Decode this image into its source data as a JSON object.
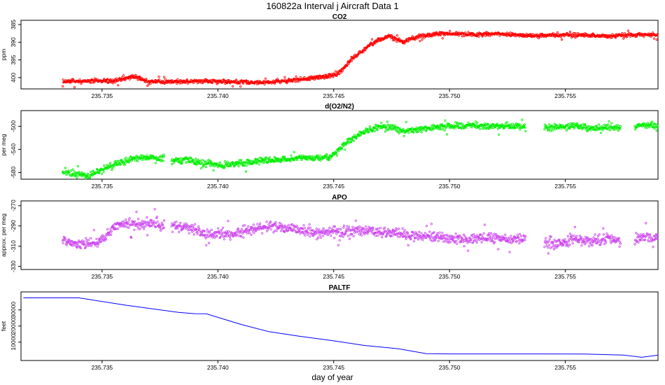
{
  "figure": {
    "title": "160822a   Interval j Aircraft Data 1",
    "xlabel": "day of year"
  },
  "chart_data": [
    {
      "type": "scatter",
      "title": "CO2",
      "ylabel": "ppm",
      "xlim": [
        235.7315,
        235.759
      ],
      "ylim": [
        383.8,
        403.2
      ],
      "yticks": [
        385,
        390,
        395,
        400
      ],
      "reversed_y": true,
      "xticks": [
        235.735,
        235.74,
        235.745,
        235.75,
        235.755
      ],
      "xtick_labels": [
        "235.735",
        "235.740",
        "235.745",
        "235.750",
        "235.755"
      ],
      "grid": false,
      "color": "#ff0000",
      "series": [
        {
          "x": [
            235.7333,
            235.734,
            235.7348,
            235.7355,
            235.736,
            235.7364,
            235.737,
            235.738,
            235.739,
            235.74,
            235.741,
            235.742,
            235.743,
            235.744,
            235.7448,
            235.7452,
            235.7455,
            235.7458,
            235.7462,
            235.7466,
            235.747,
            235.7474,
            235.7478,
            235.748,
            235.7484,
            235.7488,
            235.7494,
            235.75,
            235.751,
            235.752,
            235.753,
            235.754,
            235.755,
            235.756,
            235.757,
            235.758,
            235.759
          ],
          "y": [
            401.2,
            401.0,
            400.9,
            401.0,
            400.3,
            399.6,
            401.2,
            401.2,
            401.0,
            401.0,
            401.3,
            401.4,
            400.9,
            400.1,
            399.6,
            398.8,
            397.0,
            394.5,
            392.7,
            390.5,
            389.2,
            388.4,
            389.2,
            390.0,
            388.8,
            388.3,
            387.6,
            387.6,
            387.9,
            387.6,
            388.0,
            388.2,
            387.9,
            388.1,
            388.3,
            387.9,
            387.9
          ]
        }
      ]
    },
    {
      "type": "scatter",
      "title": "d(O2/N2)",
      "ylabel": "per meg",
      "xlim": [
        235.7315,
        235.759
      ],
      "ylim": [
        -591.6,
        -472.9
      ],
      "yticks": [
        -580,
        -540,
        -500
      ],
      "xticks": [
        235.735,
        235.74,
        235.745,
        235.75,
        235.755
      ],
      "xtick_labels": [
        "235.735",
        "235.740",
        "235.745",
        "235.750",
        "235.755"
      ],
      "grid": false,
      "color": "#00ee00",
      "series": [
        {
          "segments": [
            {
              "x": [
                235.7333,
                235.7338,
                235.7343,
                235.7348,
                235.7353,
                235.7358,
                235.7365,
                235.7372,
                235.7377
              ],
              "y": [
                -578,
                -582,
                -585,
                -580,
                -569,
                -562,
                -555,
                -554,
                -555
              ]
            },
            {
              "x": [
                235.738,
                235.7387,
                235.7393,
                235.74,
                235.7408,
                235.7415,
                235.7425,
                235.7435,
                235.7445,
                235.7449,
                235.7452,
                235.7455,
                235.746,
                235.7465,
                235.747,
                235.7476,
                235.748,
                235.7486,
                235.749,
                235.75,
                235.751,
                235.752,
                235.7533
              ],
              "y": [
                -560,
                -558,
                -563,
                -568,
                -566,
                -562,
                -558,
                -555,
                -555,
                -552,
                -541,
                -530,
                -516,
                -506,
                -500,
                -503,
                -510,
                -506,
                -503,
                -501,
                -498,
                -500,
                -500
              ]
            },
            {
              "x": [
                235.7541,
                235.7548,
                235.7552,
                235.7556,
                235.756,
                235.7565,
                235.757,
                235.7574
              ],
              "y": [
                -503,
                -502,
                -500,
                -499,
                -504,
                -502,
                -501,
                -503
              ]
            },
            {
              "x": [
                235.758,
                235.7585,
                235.759
              ],
              "y": [
                -500,
                -498,
                -499
              ]
            }
          ]
        }
      ]
    },
    {
      "type": "scatter",
      "title": "APO",
      "ylabel": "approx. per meg",
      "xlim": [
        235.7315,
        235.759
      ],
      "ylim": [
        -333.0,
        -265.3
      ],
      "yticks": [
        -330,
        -310,
        -290,
        -270
      ],
      "xticks": [
        235.735,
        235.74,
        235.745,
        235.75,
        235.755
      ],
      "xtick_labels": [
        "235.735",
        "235.740",
        "235.745",
        "235.750",
        "235.755"
      ],
      "grid": false,
      "color": "#cc44ee",
      "series": [
        {
          "segments": [
            {
              "x": [
                235.7333,
                235.734,
                235.7348,
                235.7355,
                235.736,
                235.7366,
                235.7372,
                235.7377
              ],
              "y": [
                -305,
                -309,
                -307,
                -292,
                -288,
                -288,
                -287,
                -289
              ]
            },
            {
              "x": [
                235.738,
                235.7388,
                235.7395,
                235.7405,
                235.7415,
                235.7425,
                235.7435,
                235.7445,
                235.7455,
                235.7465,
                235.7475,
                235.7485,
                235.7495,
                235.7505,
                235.7515,
                235.7525,
                235.7533
              ],
              "y": [
                -290,
                -292,
                -297,
                -298,
                -293,
                -291,
                -294,
                -297,
                -296,
                -295,
                -297,
                -300,
                -301,
                -303,
                -302,
                -303,
                -303
              ]
            },
            {
              "x": [
                235.7541,
                235.7547,
                235.7553,
                235.7558,
                235.7563,
                235.7569,
                235.7574
              ],
              "y": [
                -305,
                -308,
                -302,
                -305,
                -304,
                -302,
                -305
              ]
            },
            {
              "x": [
                235.758,
                235.7585,
                235.759
              ],
              "y": [
                -303,
                -301,
                -300
              ]
            }
          ]
        }
      ]
    },
    {
      "type": "line",
      "title": "PALTF",
      "ylabel": "feet",
      "xlim": [
        235.7315,
        235.759
      ],
      "ylim": [
        -1400,
        41200
      ],
      "yticks": [
        10000,
        20000,
        30000
      ],
      "xticks": [
        235.735,
        235.74,
        235.745,
        235.75,
        235.755
      ],
      "xtick_labels": [
        "235.735",
        "235.740",
        "235.745",
        "235.750",
        "235.755"
      ],
      "grid": false,
      "color": "#0000ff",
      "series": [
        {
          "x": [
            235.7316,
            235.734,
            235.736,
            235.7383,
            235.739,
            235.7395,
            235.741,
            235.7422,
            235.7435,
            235.745,
            235.7463,
            235.7478,
            235.749,
            235.75,
            235.752,
            235.754,
            235.7558,
            235.7575,
            235.7583,
            235.759
          ],
          "y": [
            37500,
            37500,
            33000,
            28500,
            27700,
            27600,
            21000,
            16500,
            13700,
            10800,
            8000,
            5900,
            2800,
            2700,
            2700,
            2700,
            2600,
            2000,
            600,
            1900
          ]
        }
      ]
    }
  ]
}
